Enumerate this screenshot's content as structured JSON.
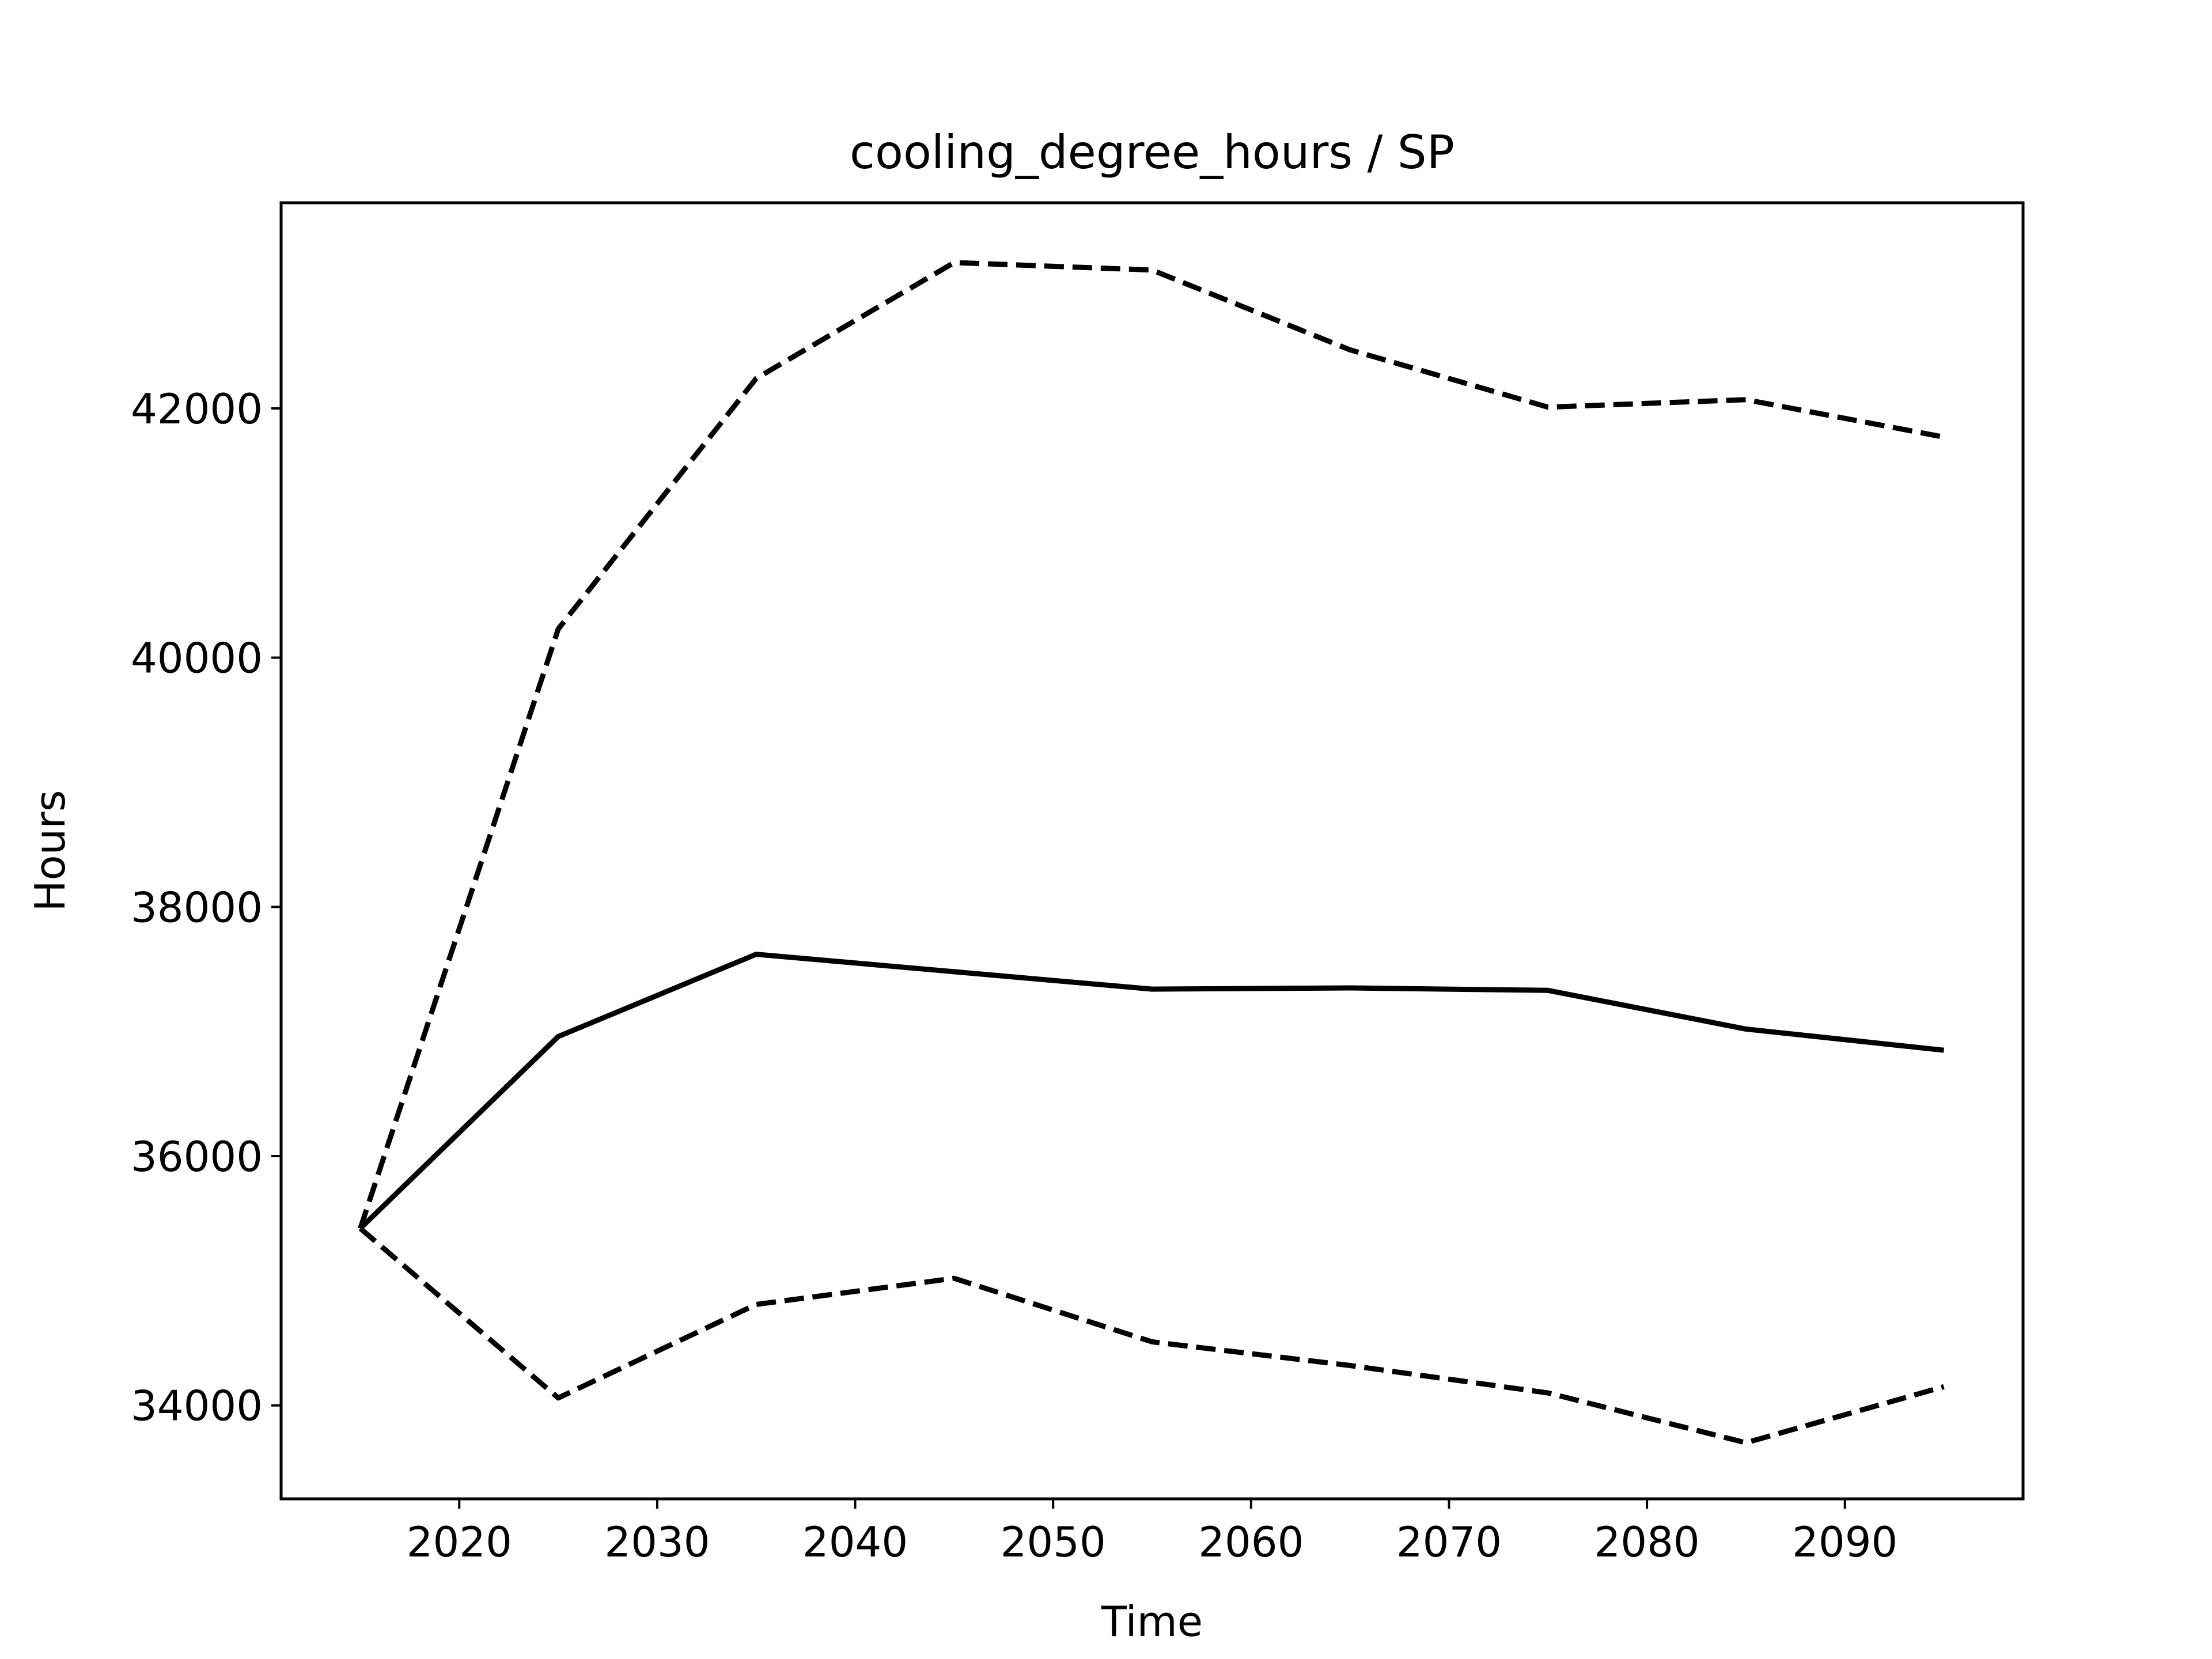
{
  "chart_data": {
    "type": "line",
    "title": "cooling_degree_hours / SP",
    "xlabel": "Time",
    "ylabel": "Hours",
    "xlim": [
      2011,
      2099
    ],
    "ylim": [
      33250,
      43650
    ],
    "x_ticks": [
      2020,
      2030,
      2040,
      2050,
      2060,
      2070,
      2080,
      2090
    ],
    "y_ticks": [
      34000,
      36000,
      38000,
      40000,
      42000
    ],
    "grid": false,
    "legend": null,
    "x": [
      2015,
      2025,
      2035,
      2045,
      2055,
      2065,
      2075,
      2085,
      2095
    ],
    "series": [
      {
        "style": "solid",
        "color": "#000000",
        "values": [
          35420,
          36960,
          37620,
          37480,
          37340,
          37350,
          37330,
          37020,
          36850
        ]
      },
      {
        "style": "dashed",
        "color": "#000000",
        "values": [
          35420,
          40230,
          42240,
          43170,
          43110,
          42470,
          42010,
          42070,
          41770
        ]
      },
      {
        "style": "dashed",
        "color": "#000000",
        "values": [
          35420,
          34060,
          34810,
          35020,
          34510,
          34320,
          34100,
          33700,
          34150
        ]
      }
    ]
  }
}
